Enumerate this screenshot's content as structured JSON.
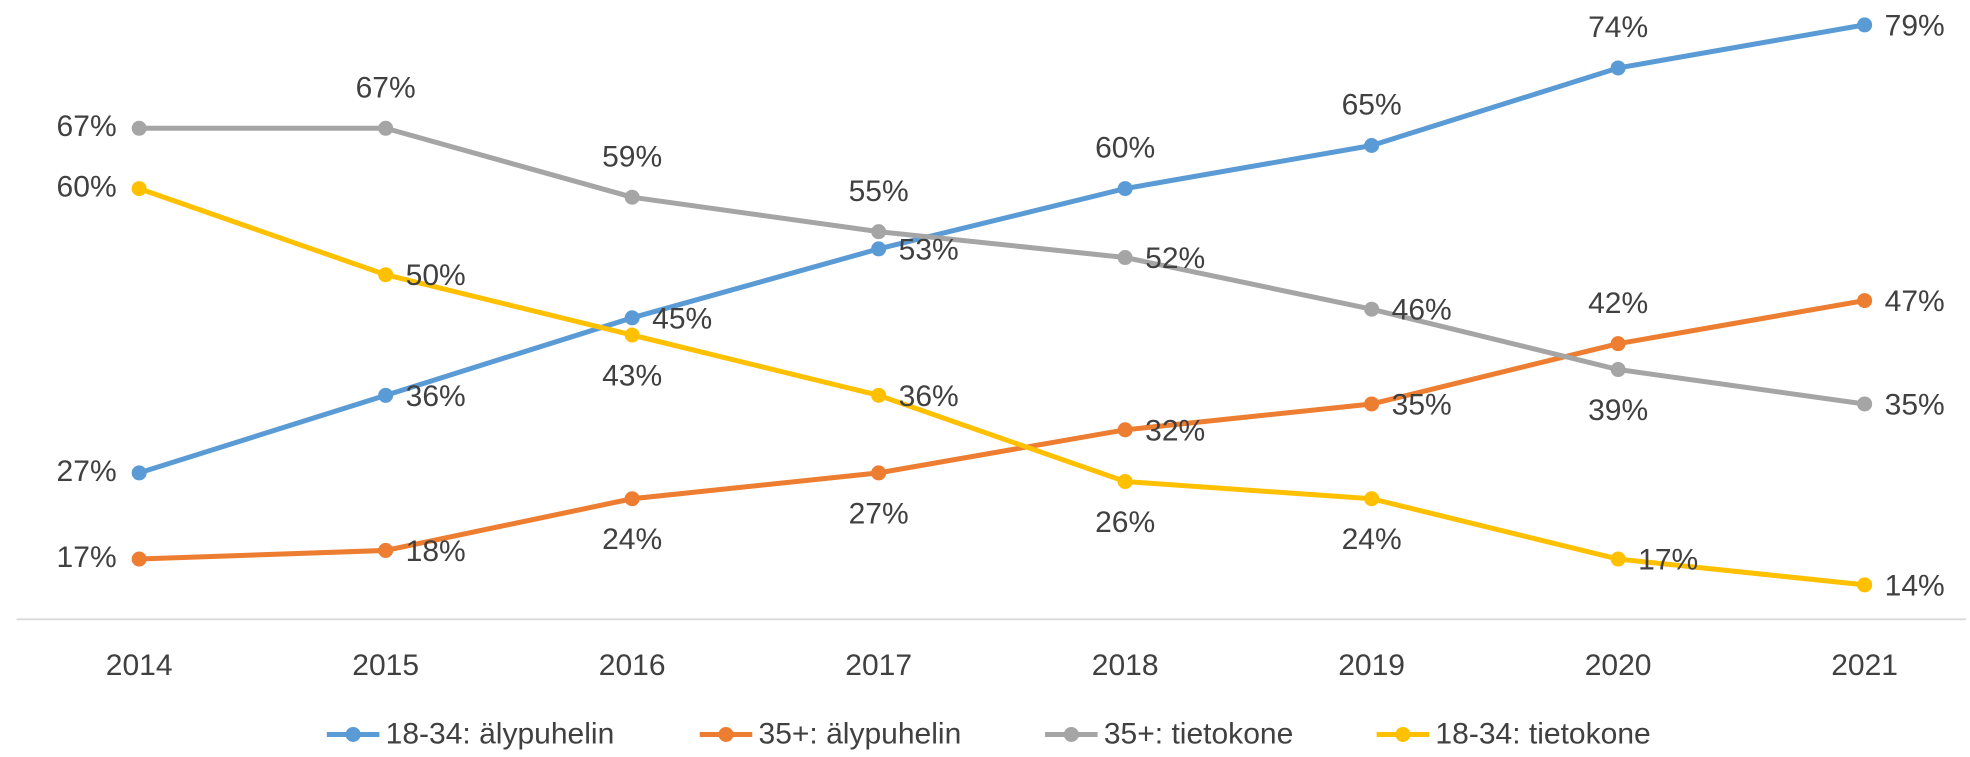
{
  "chart_data": {
    "type": "line",
    "categories": [
      "2014",
      "2015",
      "2016",
      "2017",
      "2018",
      "2019",
      "2020",
      "2021"
    ],
    "ylim": [
      10,
      80
    ],
    "series": [
      {
        "name": "18-34: älypuhelin",
        "color": "#5b9bd5",
        "values": [
          27,
          36,
          45,
          53,
          60,
          65,
          74,
          79
        ],
        "value_labels": [
          "27%",
          "36%",
          "45%",
          "53%",
          "60%",
          "65%",
          "74%",
          "79%"
        ]
      },
      {
        "name": "35+: älypuhelin",
        "color": "#ed7d31",
        "values": [
          17,
          18,
          24,
          27,
          32,
          35,
          42,
          47
        ],
        "value_labels": [
          "17%",
          "18%",
          "24%",
          "27%",
          "32%",
          "35%",
          "42%",
          "47%"
        ]
      },
      {
        "name": "35+: tietokone",
        "color": "#a5a5a5",
        "values": [
          67,
          67,
          59,
          55,
          52,
          46,
          39,
          35
        ],
        "value_labels": [
          "67%",
          "67%",
          "59%",
          "55%",
          "52%",
          "46%",
          "39%",
          "35%"
        ]
      },
      {
        "name": "18-34: tietokone",
        "color": "#ffc000",
        "values": [
          60,
          50,
          43,
          36,
          26,
          24,
          17,
          14
        ],
        "value_labels": [
          "60%",
          "50%",
          "43%",
          "36%",
          "26%",
          "24%",
          "17%",
          "14%"
        ]
      }
    ],
    "legend": "bottom"
  }
}
